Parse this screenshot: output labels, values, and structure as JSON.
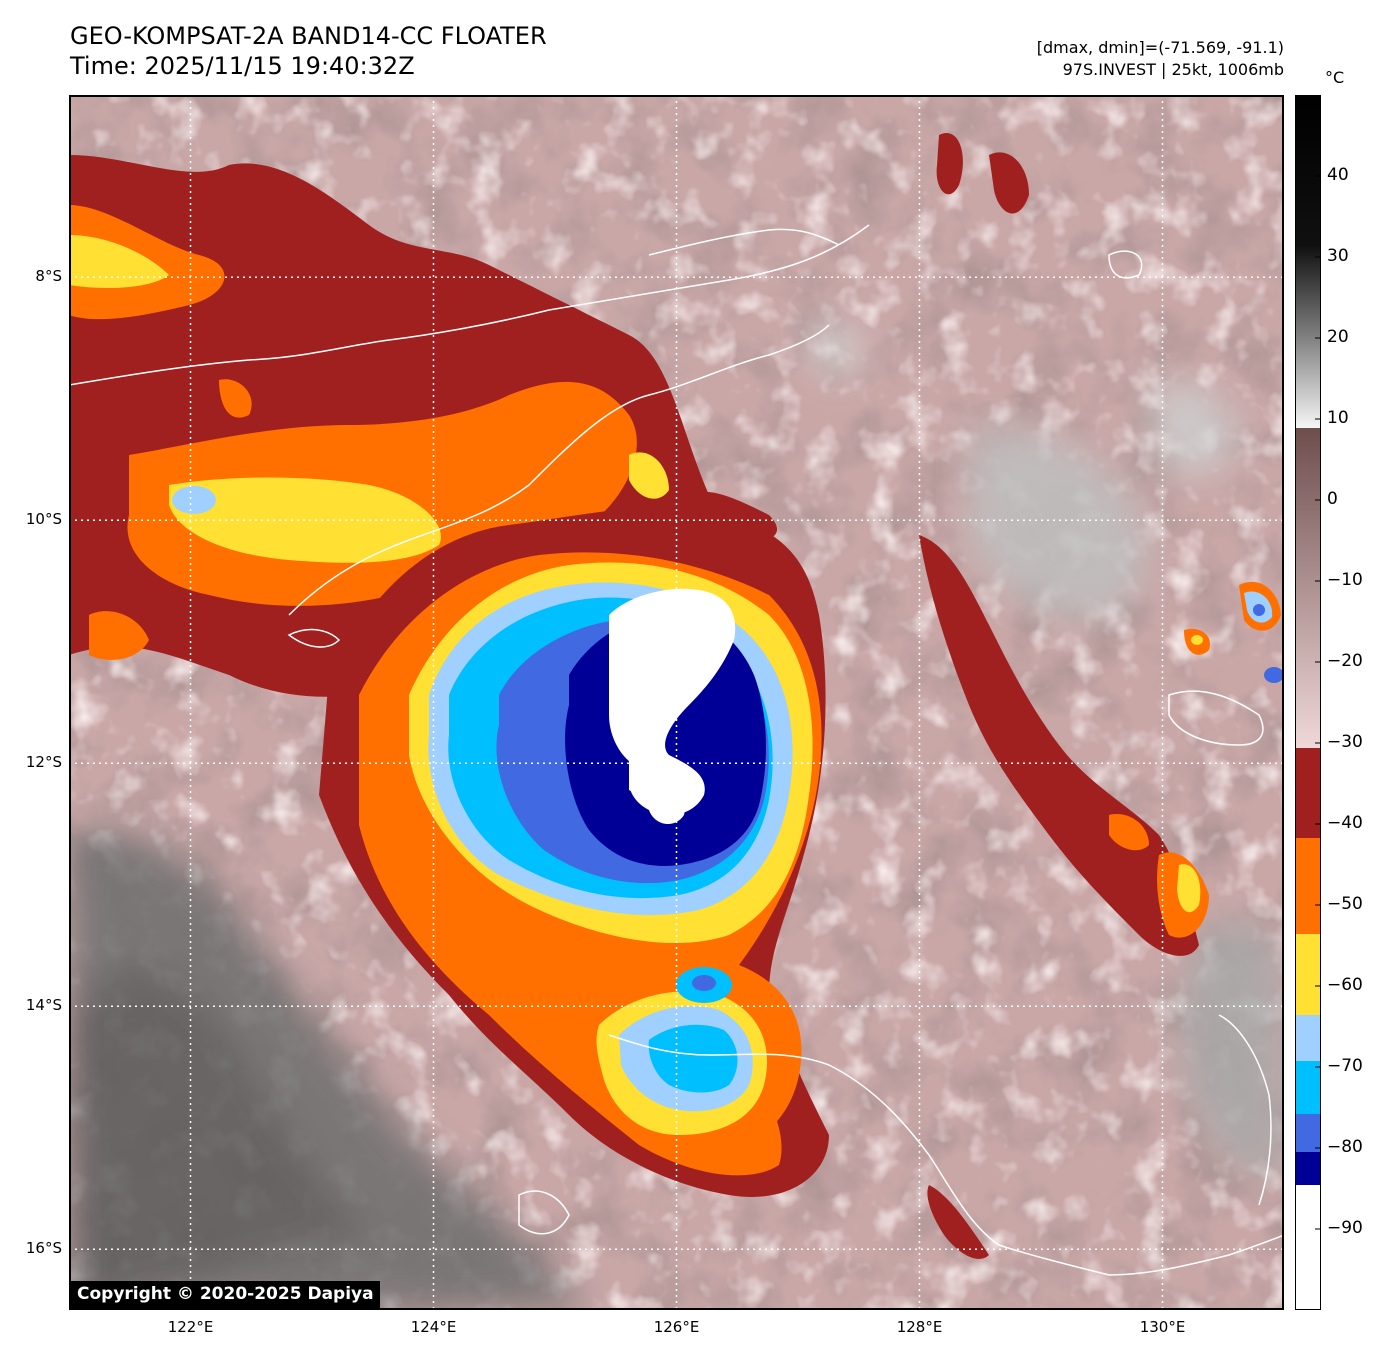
{
  "header": {
    "title_line1": "GEO-KOMPSAT-2A BAND14-CC FLOATER",
    "title_line2": "Time: 2025/11/15 19:40:32Z",
    "info_line1": "[dmax, dmin]=(-71.569, -91.1)",
    "info_line2": "97S.INVEST | 25kt, 1006mb"
  },
  "map": {
    "lat_labels": [
      "8°S",
      "10°S",
      "12°S",
      "14°S",
      "16°S"
    ],
    "lon_labels": [
      "122°E",
      "124°E",
      "126°E",
      "128°E",
      "130°E"
    ],
    "lat_values": [
      -8,
      -10,
      -12,
      -14,
      -16
    ],
    "lon_values": [
      122,
      124,
      126,
      128,
      130
    ],
    "lat_range": [
      -16.5,
      -6.5
    ],
    "lon_range": [
      121,
      131
    ],
    "grid": true,
    "storm_center_lat": -11.6,
    "storm_center_lon": 125.8
  },
  "colorbar": {
    "unit": "°C",
    "tick_labels": [
      "40",
      "30",
      "20",
      "10",
      "0",
      "−10",
      "−20",
      "−30",
      "−40",
      "−50",
      "−60",
      "−70",
      "−80",
      "−90"
    ],
    "tick_values": [
      40,
      30,
      20,
      10,
      0,
      -10,
      -20,
      -30,
      -40,
      -50,
      -60,
      -70,
      -80,
      -90
    ],
    "range": [
      -100,
      50
    ],
    "colors": {
      "band_white": "#ffffff",
      "band_darkblue": "#000096",
      "band_royalblue": "#4169e1",
      "band_deepsky": "#00bfff",
      "band_lightblue": "#a0d0ff",
      "band_yellow": "#ffe033",
      "band_orange": "#ff7000",
      "band_darkred": "#a02020",
      "pink_light": "#f0d4d4",
      "brown_dark": "#6e4d4d",
      "gray_light": "#f0f0f0",
      "black": "#000000"
    }
  },
  "copyright": "Copyright © 2020-2025 Dapiya"
}
